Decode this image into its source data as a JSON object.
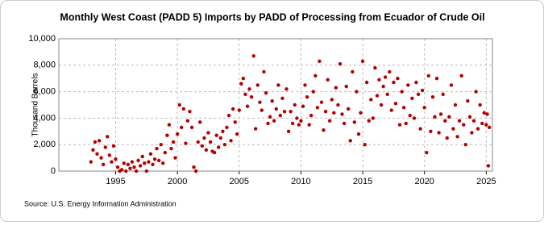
{
  "chart_data": {
    "type": "scatter",
    "title": "Monthly West Coast (PADD 5) Imports by PADD of Processing from Ecuador of Crude Oil",
    "y_label": "Thousand Barrels",
    "source": "Source: U.S. Energy Information Administration",
    "color": "#b30000",
    "grid": true,
    "xlim": [
      1990.4,
      2025.5
    ],
    "xticks": [
      1995,
      2000,
      2005,
      2010,
      2015,
      2020,
      2025
    ],
    "ylim": [
      0,
      10000
    ],
    "yticks": [
      0,
      {
        "value": 2000,
        "label": "2,000"
      },
      {
        "value": 4000,
        "label": "4,000"
      },
      {
        "value": 6000,
        "label": "6,000"
      },
      {
        "value": 8000,
        "label": "8,000"
      },
      {
        "value": 10000,
        "label": "10,000"
      }
    ],
    "x": [
      1993,
      1993.17,
      1993.33,
      1993.5,
      1993.67,
      1993.83,
      1994,
      1994.17,
      1994.33,
      1994.5,
      1994.67,
      1994.83,
      1995,
      1995.17,
      1995.33,
      1995.5,
      1995.67,
      1995.83,
      1996,
      1996.17,
      1996.33,
      1996.5,
      1996.67,
      1996.83,
      1997,
      1997.17,
      1997.33,
      1997.5,
      1997.67,
      1997.83,
      1998,
      1998.17,
      1998.33,
      1998.5,
      1998.67,
      1998.83,
      1999,
      1999.17,
      1999.33,
      1999.5,
      1999.67,
      1999.83,
      2000,
      2000.17,
      2000.33,
      2000.5,
      2000.67,
      2000.83,
      2001,
      2001.17,
      2001.33,
      2001.5,
      2001.67,
      2001.83,
      2002,
      2002.17,
      2002.33,
      2002.5,
      2002.67,
      2002.83,
      2003,
      2003.17,
      2003.33,
      2003.5,
      2003.67,
      2003.83,
      2004,
      2004.17,
      2004.33,
      2004.5,
      2004.67,
      2004.83,
      2005,
      2005.17,
      2005.33,
      2005.5,
      2005.67,
      2005.83,
      2006,
      2006.17,
      2006.33,
      2006.5,
      2006.67,
      2006.83,
      2007,
      2007.17,
      2007.33,
      2007.5,
      2007.67,
      2007.83,
      2008,
      2008.17,
      2008.33,
      2008.5,
      2008.67,
      2008.83,
      2009,
      2009.17,
      2009.33,
      2009.5,
      2009.67,
      2009.83,
      2010,
      2010.17,
      2010.33,
      2010.5,
      2010.67,
      2010.83,
      2011,
      2011.17,
      2011.33,
      2011.5,
      2011.67,
      2011.83,
      2012,
      2012.17,
      2012.33,
      2012.5,
      2012.67,
      2012.83,
      2013,
      2013.17,
      2013.33,
      2013.5,
      2013.67,
      2013.83,
      2014,
      2014.17,
      2014.33,
      2014.5,
      2014.67,
      2014.83,
      2015,
      2015.17,
      2015.33,
      2015.5,
      2015.67,
      2015.83,
      2016,
      2016.17,
      2016.33,
      2016.5,
      2016.67,
      2016.83,
      2017,
      2017.17,
      2017.33,
      2017.5,
      2017.67,
      2017.83,
      2018,
      2018.17,
      2018.33,
      2018.5,
      2018.67,
      2018.83,
      2019,
      2019.17,
      2019.33,
      2019.5,
      2019.67,
      2019.83,
      2020,
      2020.17,
      2020.33,
      2020.5,
      2020.67,
      2020.83,
      2021,
      2021.17,
      2021.33,
      2021.5,
      2021.67,
      2021.83,
      2022,
      2022.17,
      2022.33,
      2022.5,
      2022.67,
      2022.83,
      2023,
      2023.17,
      2023.33,
      2023.5,
      2023.67,
      2023.83,
      2024,
      2024.17,
      2024.33,
      2024.5,
      2024.67,
      2024.83,
      2025,
      2025.08,
      2025.17,
      2025.25
    ],
    "values": [
      700,
      1600,
      2200,
      1300,
      2300,
      1000,
      500,
      1800,
      2600,
      1200,
      700,
      1900,
      900,
      300,
      0,
      100,
      600,
      0,
      500,
      200,
      700,
      300,
      0,
      800,
      400,
      1100,
      600,
      0,
      700,
      1300,
      500,
      900,
      1700,
      800,
      2000,
      600,
      1400,
      2700,
      3500,
      1700,
      2200,
      1000,
      2800,
      5000,
      3300,
      4700,
      2100,
      3800,
      4500,
      3300,
      300,
      0,
      2200,
      3700,
      1900,
      2500,
      1600,
      2900,
      2200,
      1500,
      1400,
      2700,
      1800,
      2500,
      3000,
      2000,
      3300,
      4200,
      2300,
      4700,
      3700,
      2800,
      4600,
      6600,
      7000,
      5800,
      4900,
      6200,
      5600,
      8700,
      3200,
      6500,
      5200,
      4600,
      7500,
      5900,
      3600,
      4100,
      5300,
      3800,
      4700,
      6500,
      4200,
      5500,
      4500,
      6200,
      3000,
      4500,
      3600,
      5000,
      4000,
      3500,
      3800,
      4900,
      6500,
      5600,
      3500,
      4200,
      6000,
      7200,
      4800,
      8300,
      5200,
      3100,
      4500,
      6900,
      3800,
      5400,
      4400,
      6300,
      5000,
      8100,
      4300,
      3600,
      6400,
      4700,
      2300,
      7500,
      3700,
      6000,
      2800,
      4400,
      8300,
      2000,
      6700,
      3800,
      5400,
      4000,
      7800,
      5700,
      6900,
      5000,
      6400,
      7100,
      5800,
      7500,
      4600,
      6700,
      5100,
      7000,
      3500,
      6000,
      4800,
      3600,
      6500,
      4200,
      5500,
      4000,
      6700,
      5800,
      3200,
      6100,
      4800,
      1400,
      7200,
      3000,
      5600,
      4100,
      7000,
      2900,
      4300,
      5800,
      3800,
      2500,
      4100,
      6500,
      3200,
      5000,
      2600,
      3800,
      7200,
      3500,
      2000,
      5300,
      4100,
      2900,
      3800,
      6000,
      3200,
      5000,
      3600,
      4400,
      3500,
      4300,
      400,
      3300
    ]
  }
}
